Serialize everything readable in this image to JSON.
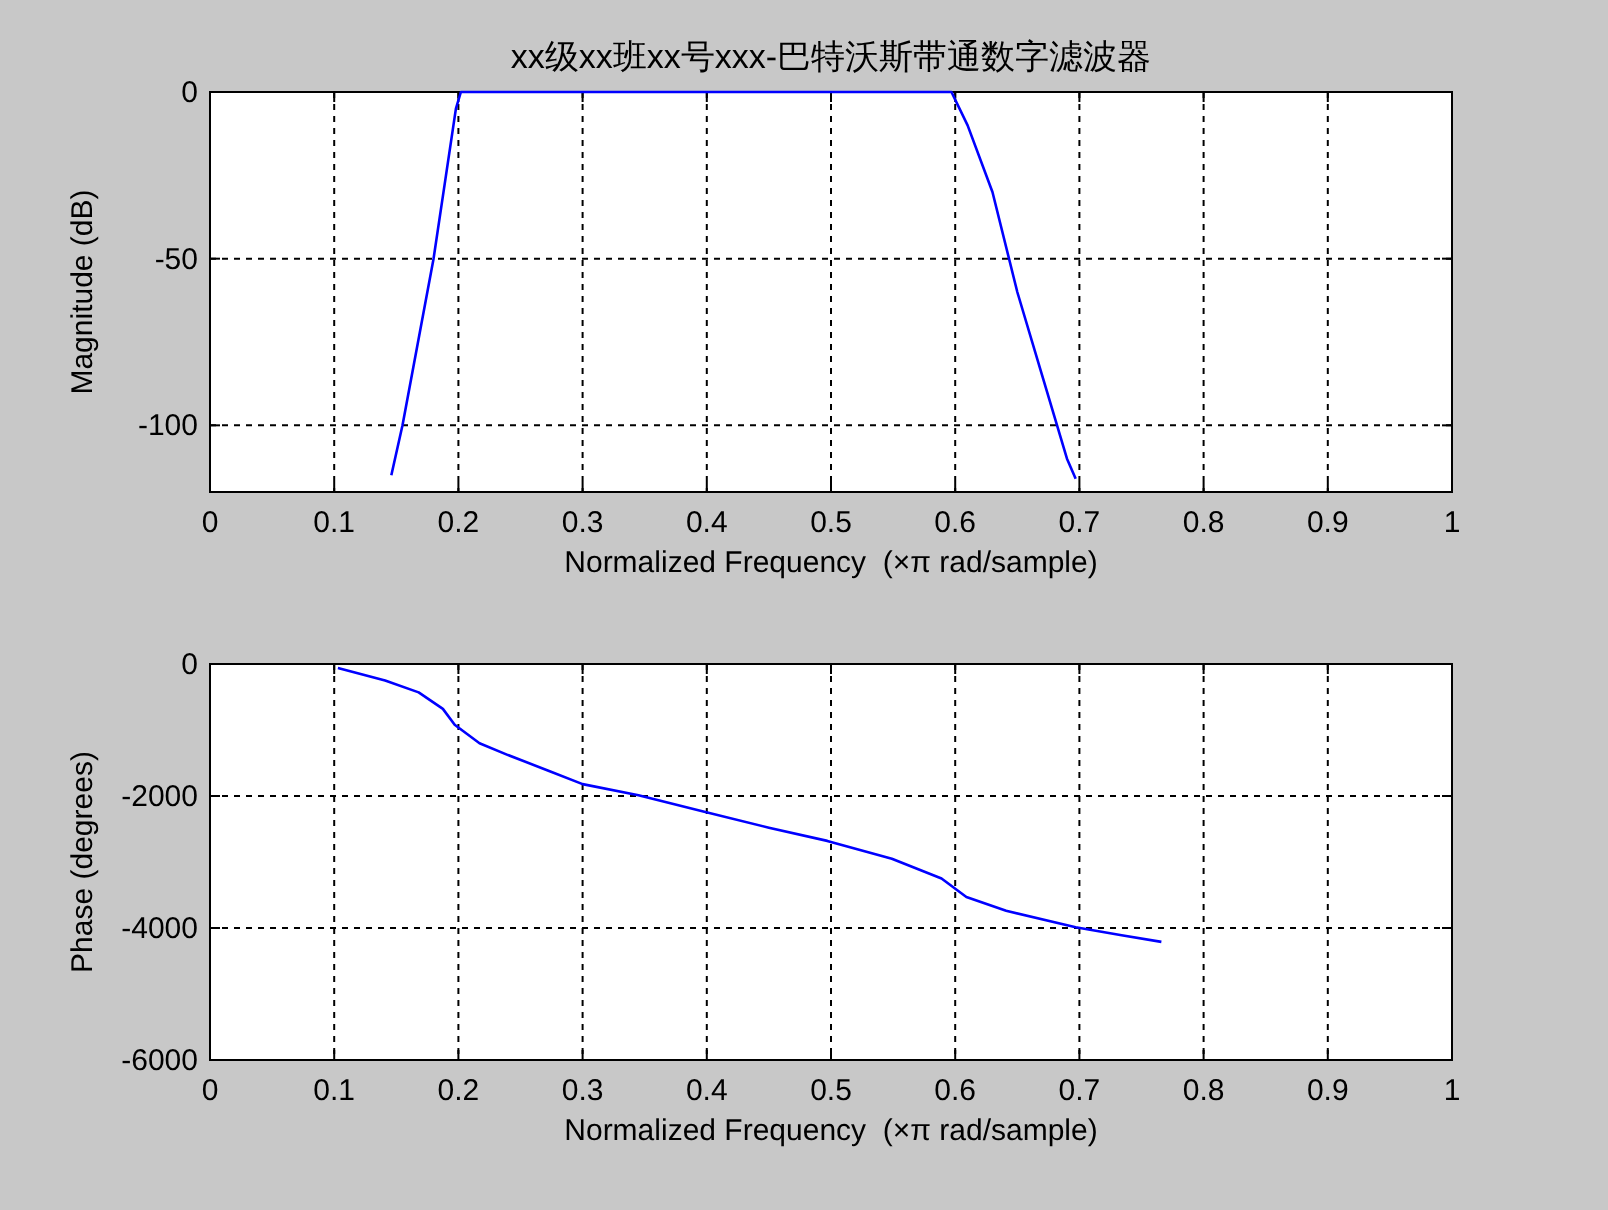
{
  "chart_data": [
    {
      "type": "line",
      "title": "xx级xx班xx号xxx-巴特沃斯带通数字滤波器",
      "xlabel": "Normalized Frequency  (×π rad/sample)",
      "ylabel": "Magnitude (dB)",
      "xlim": [
        0,
        1
      ],
      "ylim": [
        -120,
        0
      ],
      "xticks": [
        0,
        0.1,
        0.2,
        0.3,
        0.4,
        0.5,
        0.6,
        0.7,
        0.8,
        0.9,
        1
      ],
      "yticks": [
        -100,
        -50,
        0
      ],
      "grid": true,
      "series": [
        {
          "color": "#0000ff",
          "x": [
            0.146,
            0.155,
            0.17,
            0.18,
            0.19,
            0.198,
            0.202,
            0.3,
            0.4,
            0.5,
            0.597,
            0.61,
            0.63,
            0.65,
            0.67,
            0.69,
            0.697
          ],
          "values": [
            -115,
            -100,
            -70,
            -50,
            -25,
            -5,
            0,
            0,
            0,
            0,
            0,
            -10,
            -30,
            -60,
            -85,
            -110,
            -116
          ]
        }
      ]
    },
    {
      "type": "line",
      "xlabel": "Normalized Frequency  (×π rad/sample)",
      "ylabel": "Phase (degrees)",
      "xlim": [
        0,
        1
      ],
      "ylim": [
        -6000,
        0
      ],
      "xticks": [
        0,
        0.1,
        0.2,
        0.3,
        0.4,
        0.5,
        0.6,
        0.7,
        0.8,
        0.9,
        1
      ],
      "yticks": [
        -6000,
        -4000,
        -2000,
        0
      ],
      "grid": true,
      "series": [
        {
          "color": "#0000ff",
          "x": [
            0.103,
            0.141,
            0.168,
            0.1875,
            0.197,
            0.217,
            0.24,
            0.273,
            0.3,
            0.345,
            0.398,
            0.45,
            0.497,
            0.549,
            0.589,
            0.609,
            0.641,
            0.697,
            0.734,
            0.766
          ],
          "values": [
            -60,
            -250,
            -430,
            -680,
            -920,
            -1200,
            -1380,
            -1620,
            -1820,
            -1990,
            -2240,
            -2480,
            -2680,
            -2950,
            -3250,
            -3530,
            -3740,
            -3990,
            -4110,
            -4210
          ]
        }
      ]
    }
  ]
}
